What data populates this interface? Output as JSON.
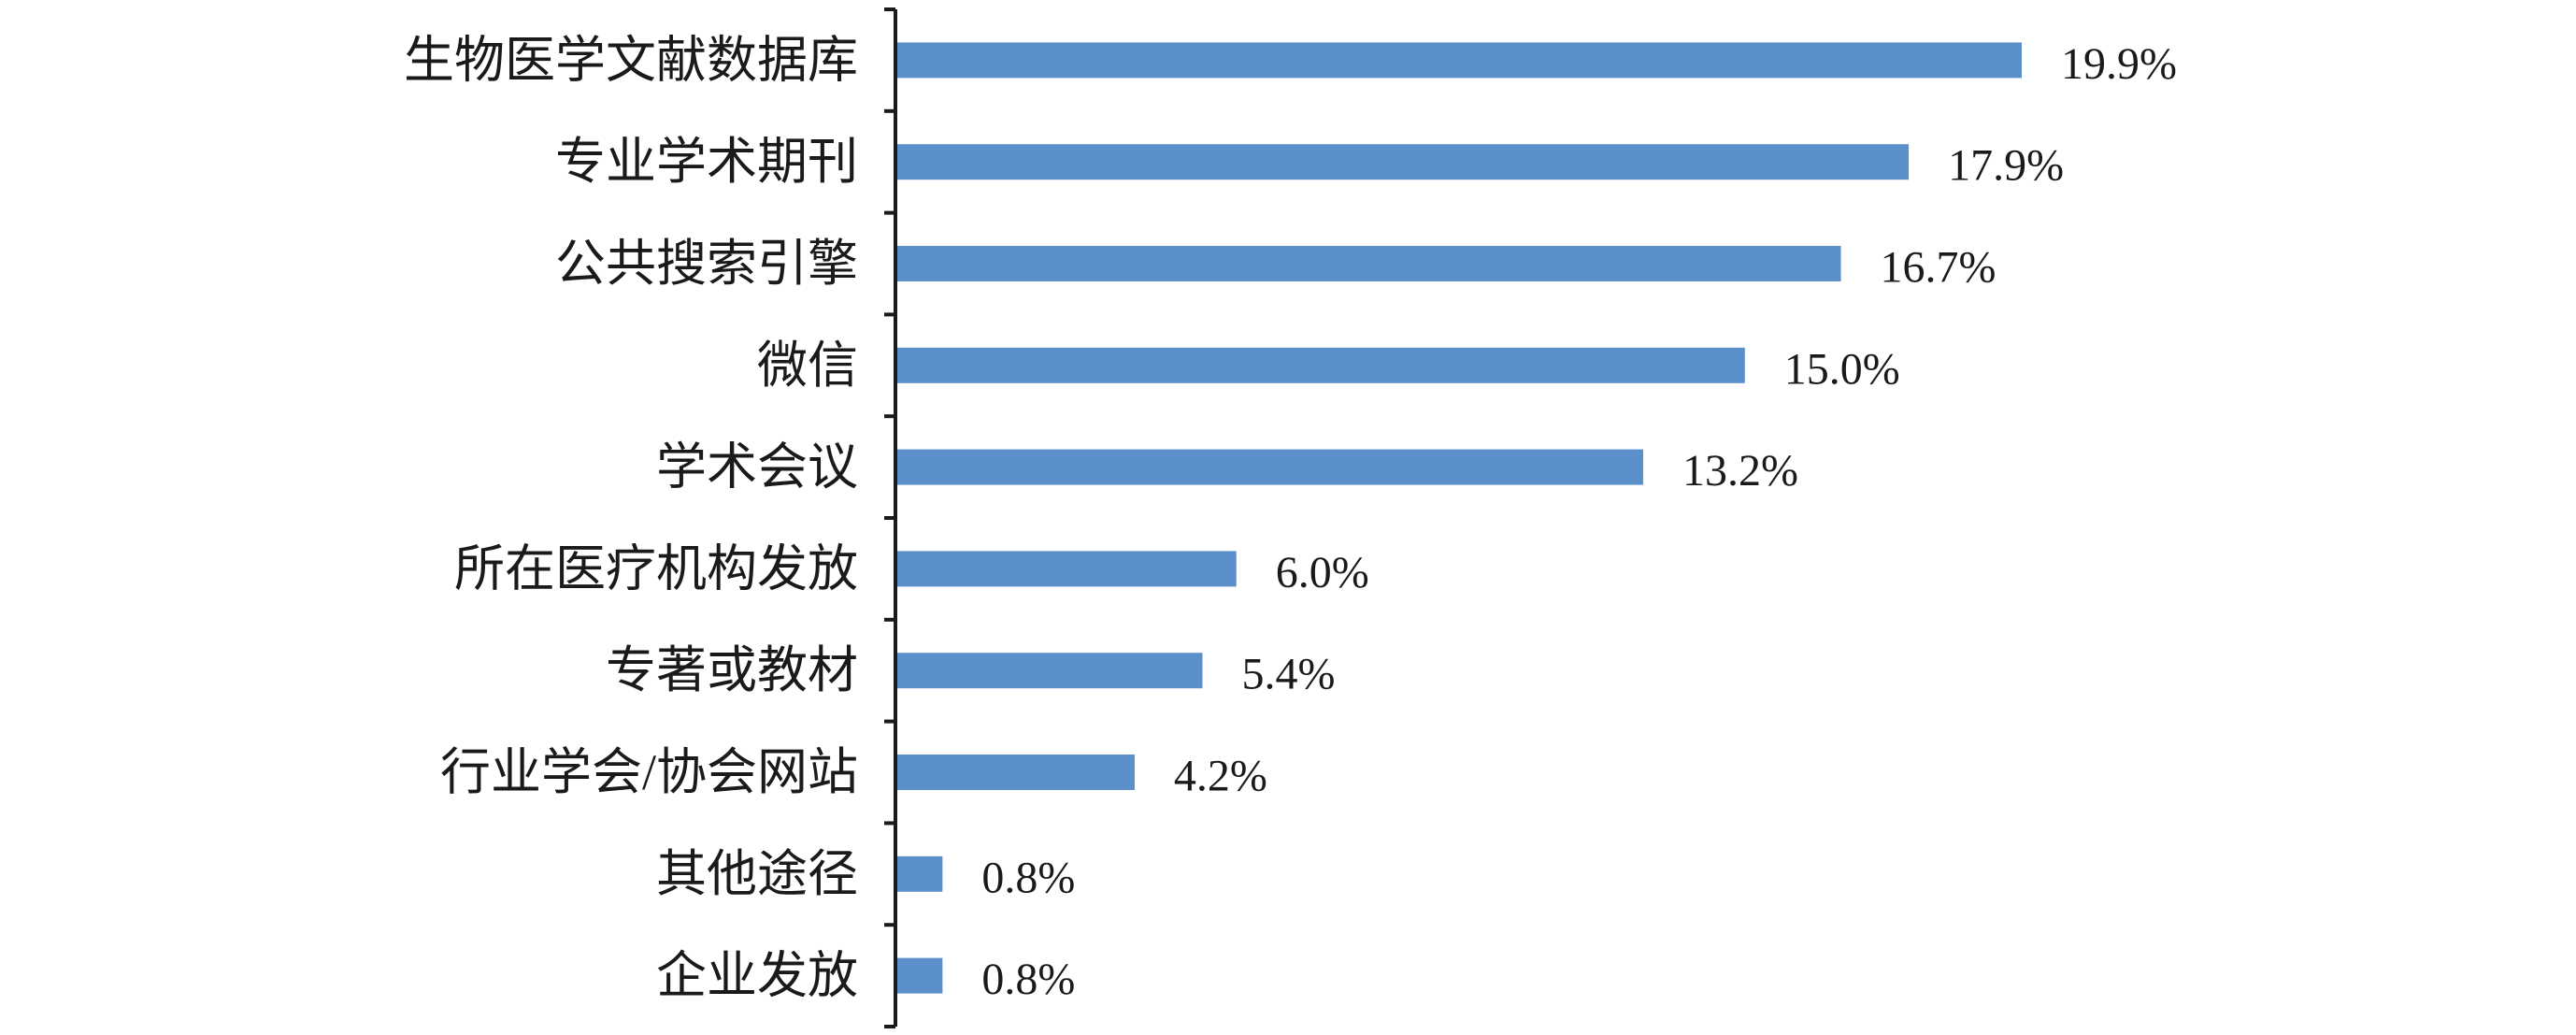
{
  "chart_data": {
    "type": "bar",
    "orientation": "horizontal",
    "categories": [
      "生物医学文献数据库",
      "专业学术期刊",
      "公共搜索引擎",
      "微信",
      "学术会议",
      "所在医疗机构发放",
      "专著或教材",
      "行业学会/协会网站",
      "其他途径",
      "企业发放"
    ],
    "values": [
      19.9,
      17.9,
      16.7,
      15.0,
      13.2,
      6.0,
      5.4,
      4.2,
      0.8,
      0.8
    ],
    "value_labels": [
      "19.9%",
      "17.9%",
      "16.7%",
      "15.0%",
      "13.2%",
      "6.0%",
      "5.4%",
      "4.2%",
      "0.8%",
      "0.8%"
    ],
    "xlim": [
      0,
      20
    ],
    "title": "",
    "xlabel": "",
    "ylabel": "",
    "grid": false,
    "legend": "none",
    "bar_color": "#5b8fca",
    "axis_color": "#1a1a1a"
  }
}
